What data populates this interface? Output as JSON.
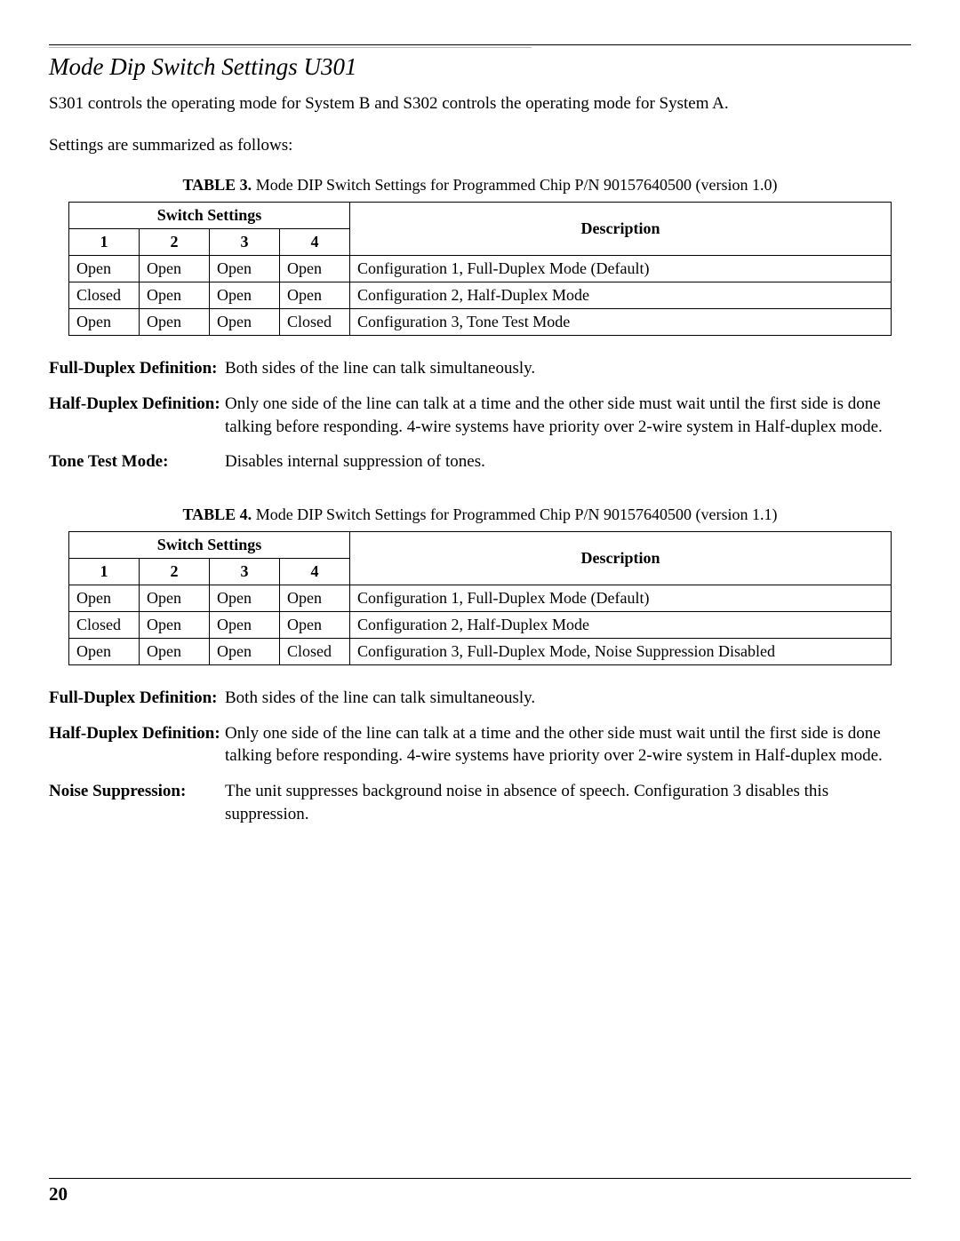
{
  "page": {
    "number": "20",
    "section_title": "Mode Dip Switch Settings U301",
    "intro1": "S301 controls the operating mode for System B and S302 controls the operating mode for System A.",
    "intro2": "Settings are summarized as follows:"
  },
  "table3": {
    "caption_label": "TABLE 3.",
    "caption_text": "Mode DIP Switch Settings for Programmed Chip P/N 90157640500 (version 1.0)",
    "header_switch": "Switch Settings",
    "header_desc": "Description",
    "cols": [
      "1",
      "2",
      "3",
      "4"
    ],
    "rows": [
      {
        "sw": [
          "Open",
          "Open",
          "Open",
          "Open"
        ],
        "desc": "Configuration 1, Full-Duplex Mode (Default)"
      },
      {
        "sw": [
          "Closed",
          "Open",
          "Open",
          "Open"
        ],
        "desc": "Configuration 2, Half-Duplex Mode"
      },
      {
        "sw": [
          "Open",
          "Open",
          "Open",
          "Closed"
        ],
        "desc": "Configuration 3, Tone Test Mode"
      }
    ]
  },
  "defs3": [
    {
      "label": "Full-Duplex Definition",
      "text": "Both sides of the line can talk simultaneously."
    },
    {
      "label": "Half-Duplex Definition",
      "text": "Only one side of the line can talk at a time and the other side must wait until the first side is done talking before responding. 4-wire systems have priority over 2-wire system in Half-duplex mode."
    },
    {
      "label": "Tone Test Mode",
      "text": "Disables internal suppression of tones."
    }
  ],
  "table4": {
    "caption_label": "TABLE 4.",
    "caption_text": "Mode DIP Switch Settings for Programmed Chip P/N 90157640500 (version 1.1)",
    "header_switch": "Switch Settings",
    "header_desc": "Description",
    "cols": [
      "1",
      "2",
      "3",
      "4"
    ],
    "rows": [
      {
        "sw": [
          "Open",
          "Open",
          "Open",
          "Open"
        ],
        "desc": "Configuration 1, Full-Duplex Mode (Default)"
      },
      {
        "sw": [
          "Closed",
          "Open",
          "Open",
          "Open"
        ],
        "desc": "Configuration 2, Half-Duplex Mode"
      },
      {
        "sw": [
          "Open",
          "Open",
          "Open",
          "Closed"
        ],
        "desc": "Configuration 3, Full-Duplex Mode, Noise Suppression Disabled"
      }
    ]
  },
  "defs4": [
    {
      "label": "Full-Duplex Definition",
      "text": "Both sides of the line can talk simultaneously."
    },
    {
      "label": "Half-Duplex Definition",
      "text": "Only one side of the line can talk at a time and the other side must wait until the first side is done talking before responding. 4-wire systems have priority over 2-wire system in Half-duplex mode."
    },
    {
      "label": "Noise Suppression",
      "text": "The unit suppresses background noise in absence of speech. Configuration 3 disables this suppression."
    }
  ]
}
